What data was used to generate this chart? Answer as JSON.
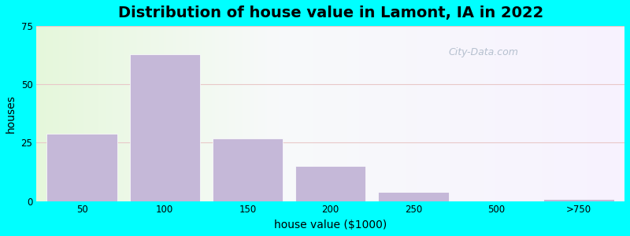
{
  "title": "Distribution of house value in Lamont, IA in 2022",
  "xlabel": "house value ($1000)",
  "ylabel": "houses",
  "bar_heights": [
    29,
    63,
    27,
    15,
    4,
    0,
    1
  ],
  "bar_color": "#c5b8d8",
  "bar_edgecolor": "#ffffff",
  "ylim": [
    0,
    75
  ],
  "yticks": [
    0,
    25,
    50,
    75
  ],
  "xtick_labels": [
    "50",
    "100",
    "150",
    "200",
    "250",
    "500",
    ">750"
  ],
  "background_outer": "#00ffff",
  "title_fontsize": 14,
  "axis_label_fontsize": 10,
  "watermark_text": "City-Data.com",
  "grid_color": "#e8c8c8",
  "grid_linewidth": 0.8
}
